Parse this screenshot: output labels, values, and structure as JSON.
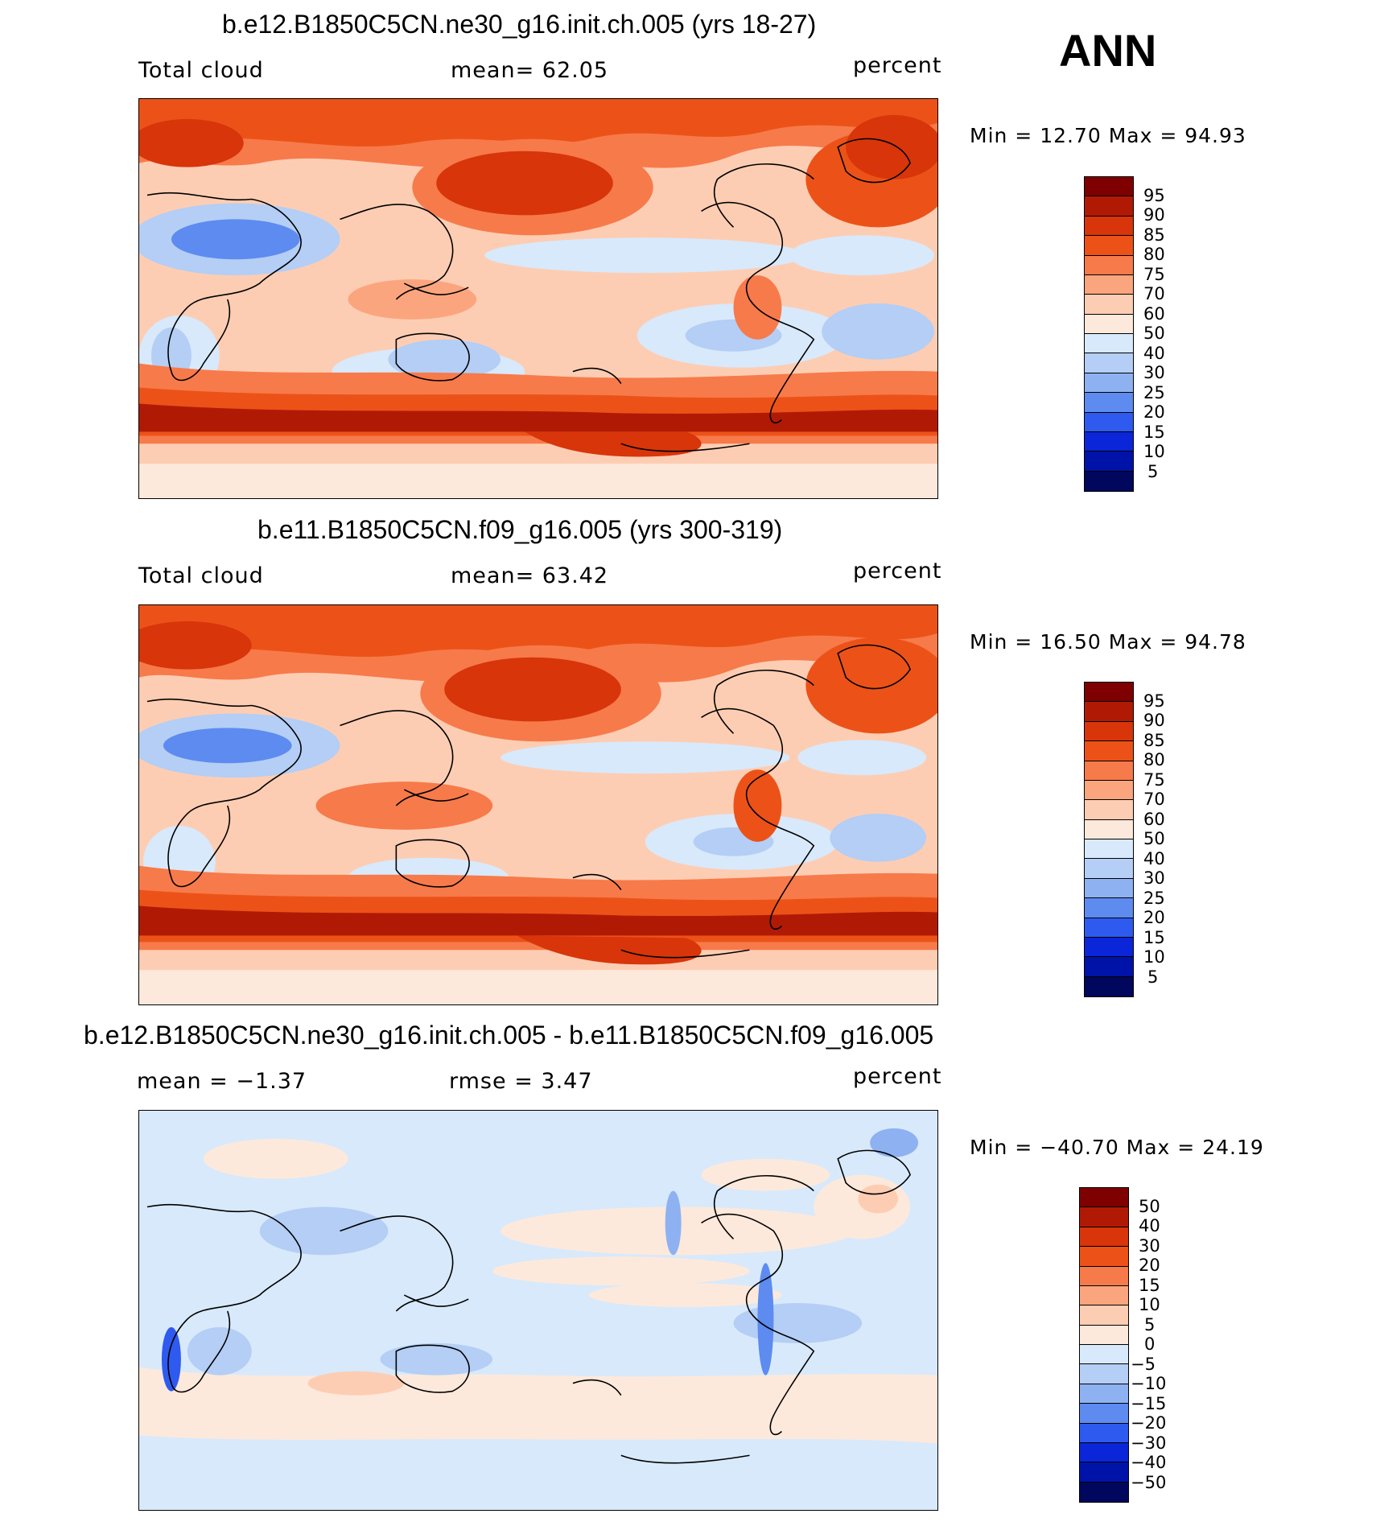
{
  "season": "ANN",
  "panels": [
    {
      "title": "b.e12.B1850C5CN.ne30_g16.init.ch.005 (yrs 18-27)",
      "left_label": "Total cloud",
      "center_label": "mean=   62.05",
      "units": "percent",
      "minmax": "Min =   12.70 Max =   94.93",
      "cmap": "abs",
      "colorbar_labels": [
        "95",
        "90",
        "85",
        "80",
        "75",
        "70",
        "60",
        "50",
        "40",
        "30",
        "25",
        "20",
        "15",
        "10",
        "5"
      ]
    },
    {
      "title": "b.e11.B1850C5CN.f09_g16.005 (yrs 300-319)",
      "left_label": "Total cloud",
      "center_label": "mean=   63.42",
      "units": "percent",
      "minmax": "Min =   16.50 Max =   94.78",
      "cmap": "abs",
      "colorbar_labels": [
        "95",
        "90",
        "85",
        "80",
        "75",
        "70",
        "60",
        "50",
        "40",
        "30",
        "25",
        "20",
        "15",
        "10",
        "5"
      ]
    },
    {
      "title": "b.e12.B1850C5CN.ne30_g16.init.ch.005 - b.e11.B1850C5CN.f09_g16.005",
      "left_label": "mean =  −1.37",
      "center_label": "rmse =    3.47",
      "units": "percent",
      "minmax": "Min = −40.70 Max =   24.19",
      "cmap": "diff",
      "colorbar_labels": [
        "50",
        "40",
        "30",
        "20",
        "15",
        "10",
        "5",
        "0",
        "−5",
        "−10",
        "−15",
        "−20",
        "−30",
        "−40",
        "−50"
      ]
    }
  ],
  "colors": {
    "abs": [
      "#7f0000",
      "#b01a05",
      "#d8350a",
      "#ec5218",
      "#f77a4a",
      "#fba57e",
      "#fdcdb3",
      "#fde9db",
      "#d8e9fb",
      "#b4cef5",
      "#8eb1f1",
      "#5d8bf0",
      "#2e5af0",
      "#0a26d8",
      "#0013a8",
      "#00075c"
    ],
    "diff": [
      "#7f0000",
      "#b01a05",
      "#d8350a",
      "#ec5218",
      "#f77a4a",
      "#fba57e",
      "#fdcdb3",
      "#fde9db",
      "#d8e9fb",
      "#b4cef5",
      "#8eb1f1",
      "#5d8bf0",
      "#2e5af0",
      "#0a26d8",
      "#0013a8",
      "#00075c"
    ]
  }
}
